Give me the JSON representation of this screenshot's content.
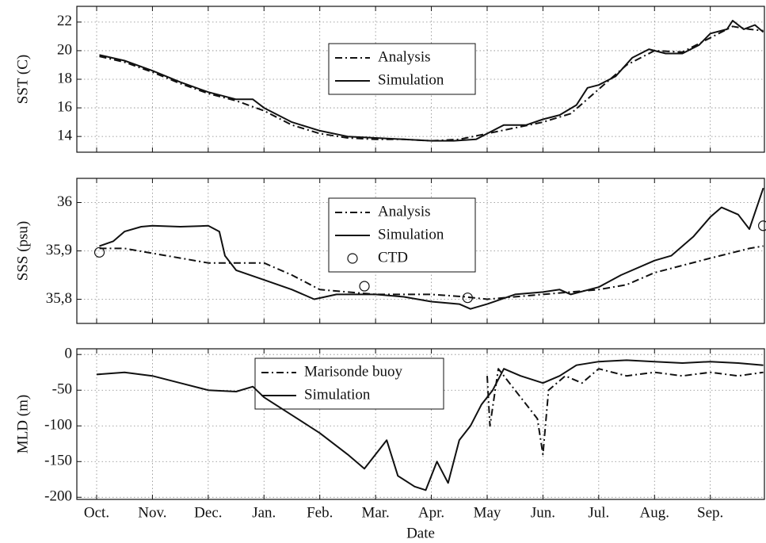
{
  "chart_data": [
    {
      "type": "line",
      "ylabel": "SST (C)",
      "ylim": [
        12.9,
        23.1
      ],
      "yticks": [
        14,
        16,
        18,
        20,
        22
      ],
      "xlim": [
        -0.355,
        11.97
      ],
      "xticks": [
        0,
        1,
        2,
        3,
        4,
        5,
        6,
        7,
        8,
        9,
        10,
        11
      ],
      "grid": true,
      "series": [
        {
          "name": "Analysis",
          "color": "#111111",
          "style": "dashdot",
          "x": [
            0.05,
            0.5,
            1,
            1.5,
            2,
            2.5,
            3,
            3.5,
            4,
            4.5,
            5,
            5.5,
            6,
            6.5,
            7,
            7.5,
            8,
            8.5,
            9,
            9.5,
            10,
            10.5,
            11,
            11.4,
            11.7,
            11.95
          ],
          "values": [
            19.6,
            19.2,
            18.5,
            17.7,
            17.0,
            16.5,
            15.8,
            14.8,
            14.2,
            13.9,
            13.8,
            13.8,
            13.7,
            13.8,
            14.2,
            14.6,
            15.0,
            15.6,
            17.3,
            19.0,
            20.0,
            19.9,
            20.9,
            21.7,
            21.5,
            21.4
          ]
        },
        {
          "name": "Simulation",
          "color": "#111111",
          "style": "solid",
          "x": [
            0.05,
            0.5,
            1,
            1.5,
            2,
            2.5,
            2.8,
            3,
            3.5,
            4,
            4.5,
            5,
            5.5,
            6,
            6.4,
            6.8,
            7,
            7.3,
            7.7,
            8,
            8.3,
            8.6,
            8.8,
            9,
            9.3,
            9.6,
            9.9,
            10.2,
            10.5,
            10.8,
            11,
            11.3,
            11.4,
            11.6,
            11.8,
            11.95
          ],
          "values": [
            19.7,
            19.3,
            18.6,
            17.8,
            17.1,
            16.6,
            16.6,
            16.0,
            15.0,
            14.4,
            14.0,
            13.9,
            13.8,
            13.7,
            13.7,
            13.8,
            14.2,
            14.8,
            14.8,
            15.2,
            15.5,
            16.2,
            17.4,
            17.6,
            18.2,
            19.5,
            20.1,
            19.8,
            19.8,
            20.4,
            21.2,
            21.5,
            22.1,
            21.5,
            21.8,
            21.3
          ]
        }
      ]
    },
    {
      "type": "line",
      "ylabel": "SSS (psu)",
      "ylim": [
        35.75,
        36.05
      ],
      "yticks": [
        {
          "value": 35.8,
          "label": "35,8"
        },
        {
          "value": 35.9,
          "label": "35,9"
        },
        36
      ],
      "xlim": [
        -0.355,
        11.97
      ],
      "xticks": [
        0,
        1,
        2,
        3,
        4,
        5,
        6,
        7,
        8,
        9,
        10,
        11
      ],
      "grid": true,
      "series": [
        {
          "name": "Analysis",
          "color": "#111111",
          "style": "dashdot",
          "x": [
            0.05,
            0.5,
            1,
            2,
            3,
            3.5,
            4,
            5,
            6,
            6.6,
            7,
            8,
            9,
            9.5,
            10,
            11,
            11.7,
            11.95
          ],
          "values": [
            35.905,
            35.905,
            35.895,
            35.875,
            35.875,
            35.85,
            35.82,
            35.81,
            35.81,
            35.805,
            35.8,
            35.81,
            35.82,
            35.83,
            35.855,
            35.885,
            35.905,
            35.91
          ]
        },
        {
          "name": "Simulation",
          "color": "#111111",
          "style": "solid",
          "x": [
            0.05,
            0.3,
            0.5,
            0.8,
            1,
            1.5,
            2,
            2.2,
            2.3,
            2.5,
            3,
            3.5,
            3.9,
            4.3,
            5,
            5.5,
            6,
            6.5,
            6.7,
            7,
            7.5,
            8,
            8.3,
            8.5,
            9,
            9.4,
            10,
            10.3,
            10.7,
            11,
            11.2,
            11.5,
            11.7,
            11.95
          ],
          "values": [
            35.91,
            35.92,
            35.94,
            35.95,
            35.952,
            35.95,
            35.952,
            35.94,
            35.89,
            35.86,
            35.84,
            35.82,
            35.8,
            35.81,
            35.81,
            35.805,
            35.795,
            35.79,
            35.78,
            35.79,
            35.81,
            35.815,
            35.82,
            35.81,
            35.825,
            35.85,
            35.88,
            35.89,
            35.93,
            35.97,
            35.99,
            35.975,
            35.945,
            36.03
          ]
        },
        {
          "name": "CTD",
          "color": "#111111",
          "style": "marker",
          "x": [
            0.05,
            4.8,
            6.65,
            11.95
          ],
          "values": [
            35.897,
            35.827,
            35.803,
            35.952
          ]
        }
      ]
    },
    {
      "type": "line",
      "ylabel": "MLD (m)",
      "xlabel": "Date",
      "ylim": [
        -203,
        8
      ],
      "yticks": [
        -200,
        -150,
        -100,
        -50,
        0
      ],
      "xlim": [
        -0.355,
        11.97
      ],
      "xticks": [
        {
          "value": 0,
          "label": "Oct."
        },
        {
          "value": 1,
          "label": "Nov."
        },
        {
          "value": 2,
          "label": "Dec."
        },
        {
          "value": 3,
          "label": "Jan."
        },
        {
          "value": 4,
          "label": "Feb."
        },
        {
          "value": 5,
          "label": "Mar."
        },
        {
          "value": 6,
          "label": "Apr."
        },
        {
          "value": 7,
          "label": "May"
        },
        {
          "value": 8,
          "label": "Jun."
        },
        {
          "value": 9,
          "label": "Jul."
        },
        {
          "value": 10,
          "label": "Aug."
        },
        {
          "value": 11,
          "label": "Sep."
        }
      ],
      "grid": true,
      "series": [
        {
          "name": "Marisonde buoy",
          "color": "#111111",
          "style": "dashdot",
          "x": [
            7,
            7.05,
            7.2,
            7.5,
            7.9,
            8.0,
            8.1,
            8.4,
            8.7,
            9,
            9.5,
            10,
            10.5,
            11,
            11.5,
            11.95
          ],
          "values": [
            -30,
            -100,
            -20,
            -50,
            -90,
            -140,
            -50,
            -30,
            -40,
            -20,
            -30,
            -25,
            -30,
            -25,
            -30,
            -25
          ]
        },
        {
          "name": "Simulation",
          "color": "#111111",
          "style": "solid",
          "x": [
            0,
            0.5,
            1,
            1.5,
            2,
            2.5,
            2.8,
            3,
            3.5,
            4,
            4.5,
            4.8,
            5,
            5.2,
            5.4,
            5.7,
            5.9,
            6.1,
            6.3,
            6.5,
            6.7,
            6.9,
            7.1,
            7.3,
            7.6,
            8,
            8.3,
            8.6,
            9,
            9.5,
            10,
            10.5,
            11,
            11.5,
            11.95
          ],
          "values": [
            -28,
            -25,
            -30,
            -40,
            -50,
            -52,
            -45,
            -60,
            -85,
            -110,
            -140,
            -160,
            -140,
            -120,
            -170,
            -185,
            -190,
            -150,
            -180,
            -120,
            -100,
            -70,
            -50,
            -20,
            -30,
            -40,
            -30,
            -15,
            -10,
            -8,
            -10,
            -12,
            -10,
            -12,
            -15
          ]
        }
      ]
    }
  ]
}
